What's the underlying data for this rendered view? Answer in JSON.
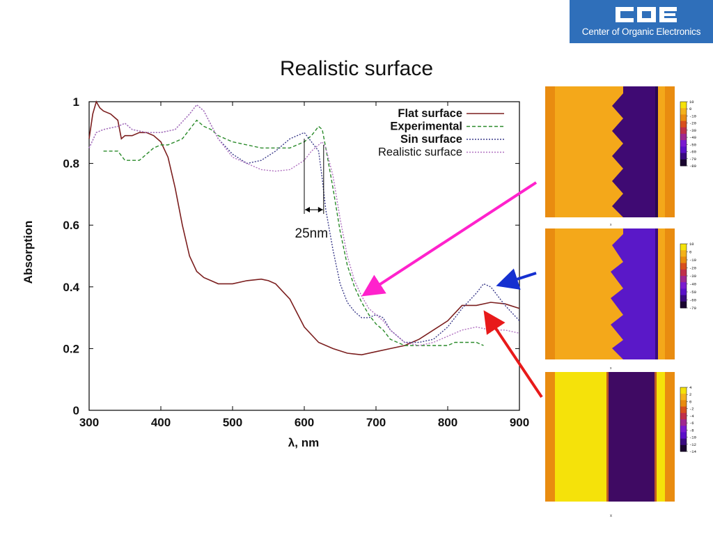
{
  "logo": {
    "mark_letters": "COE",
    "text": "Center of Organic Electronics",
    "bg_color": "#2f6fba"
  },
  "slide_title": "Realistic surface",
  "chart_data": {
    "type": "line",
    "title": "",
    "xlabel": "λ, nm",
    "ylabel": "Absorption",
    "xlim": [
      300,
      900
    ],
    "ylim": [
      0,
      1
    ],
    "xticks": [
      "300",
      "400",
      "500",
      "600",
      "700",
      "800",
      "900"
    ],
    "yticks": [
      "0",
      "0.2",
      "0.4",
      "0.6",
      "0.8",
      "1"
    ],
    "ytick_values": [
      0,
      0.2,
      0.4,
      0.6,
      0.8,
      1
    ],
    "grid": false,
    "legend_position": "top-right",
    "series": [
      {
        "name": "Flat surface",
        "color": "#7b1e1e",
        "dash": "solid",
        "x": [
          300,
          305,
          310,
          315,
          320,
          330,
          340,
          345,
          350,
          360,
          370,
          380,
          390,
          400,
          410,
          420,
          430,
          440,
          450,
          460,
          470,
          480,
          500,
          520,
          540,
          550,
          560,
          580,
          600,
          620,
          640,
          660,
          680,
          700,
          720,
          740,
          760,
          780,
          800,
          820,
          840,
          860,
          880,
          900
        ],
        "y": [
          0.88,
          0.96,
          1.0,
          0.98,
          0.97,
          0.96,
          0.94,
          0.88,
          0.89,
          0.89,
          0.9,
          0.9,
          0.89,
          0.87,
          0.82,
          0.72,
          0.6,
          0.5,
          0.45,
          0.43,
          0.42,
          0.41,
          0.41,
          0.42,
          0.425,
          0.42,
          0.41,
          0.36,
          0.27,
          0.22,
          0.2,
          0.185,
          0.18,
          0.19,
          0.2,
          0.21,
          0.23,
          0.26,
          0.29,
          0.34,
          0.34,
          0.35,
          0.345,
          0.33
        ]
      },
      {
        "name": "Experimental",
        "color": "#2a8a2a",
        "dash": "dashed",
        "x": [
          320,
          330,
          340,
          350,
          360,
          370,
          380,
          390,
          400,
          410,
          420,
          430,
          440,
          450,
          460,
          470,
          480,
          500,
          520,
          540,
          560,
          580,
          600,
          610,
          620,
          625,
          630,
          640,
          650,
          660,
          670,
          680,
          690,
          700,
          710,
          720,
          730,
          740,
          760,
          780,
          800,
          810,
          820,
          840,
          850
        ],
        "y": [
          0.84,
          0.84,
          0.84,
          0.81,
          0.81,
          0.81,
          0.83,
          0.85,
          0.86,
          0.86,
          0.87,
          0.88,
          0.91,
          0.94,
          0.92,
          0.91,
          0.89,
          0.87,
          0.86,
          0.85,
          0.85,
          0.85,
          0.87,
          0.89,
          0.92,
          0.91,
          0.85,
          0.72,
          0.58,
          0.47,
          0.4,
          0.35,
          0.31,
          0.28,
          0.26,
          0.23,
          0.22,
          0.21,
          0.21,
          0.21,
          0.21,
          0.22,
          0.22,
          0.22,
          0.21
        ]
      },
      {
        "name": "Sin surface",
        "color": "#3a3a8a",
        "dash": "dotted",
        "x": [
          300,
          310,
          320,
          340,
          350,
          360,
          380,
          400,
          420,
          440,
          450,
          460,
          480,
          500,
          520,
          540,
          560,
          580,
          600,
          620,
          625,
          630,
          640,
          650,
          660,
          670,
          680,
          690,
          700,
          710,
          720,
          740,
          760,
          780,
          800,
          820,
          840,
          850,
          860,
          880,
          900
        ],
        "y": [
          0.85,
          0.9,
          0.91,
          0.92,
          0.93,
          0.91,
          0.9,
          0.9,
          0.91,
          0.96,
          0.99,
          0.97,
          0.88,
          0.83,
          0.8,
          0.81,
          0.84,
          0.88,
          0.9,
          0.84,
          0.75,
          0.65,
          0.52,
          0.41,
          0.35,
          0.32,
          0.3,
          0.3,
          0.31,
          0.3,
          0.26,
          0.22,
          0.22,
          0.23,
          0.27,
          0.33,
          0.38,
          0.41,
          0.4,
          0.34,
          0.29
        ]
      },
      {
        "name": "Realistic surface",
        "color": "#b070c0",
        "dash": "dotted",
        "x": [
          300,
          310,
          320,
          340,
          350,
          360,
          380,
          400,
          420,
          440,
          450,
          460,
          480,
          500,
          520,
          540,
          560,
          580,
          600,
          610,
          620,
          625,
          630,
          640,
          650,
          660,
          670,
          680,
          690,
          700,
          710,
          720,
          740,
          760,
          780,
          800,
          820,
          840,
          860,
          880,
          900
        ],
        "y": [
          0.85,
          0.9,
          0.91,
          0.92,
          0.93,
          0.91,
          0.9,
          0.9,
          0.91,
          0.96,
          0.99,
          0.97,
          0.88,
          0.82,
          0.8,
          0.78,
          0.775,
          0.78,
          0.81,
          0.84,
          0.86,
          0.87,
          0.85,
          0.76,
          0.62,
          0.5,
          0.42,
          0.37,
          0.33,
          0.31,
          0.29,
          0.26,
          0.22,
          0.21,
          0.22,
          0.24,
          0.26,
          0.27,
          0.26,
          0.26,
          0.25
        ]
      }
    ],
    "annotations": [
      {
        "text": "25nm",
        "x_from": 600,
        "x_to": 627,
        "y": 0.65,
        "label_x": 610,
        "label_y": 0.56
      }
    ]
  },
  "arrows": [
    {
      "color": "#ff22cc"
    },
    {
      "color": "#1530d0"
    },
    {
      "color": "#e81a1a"
    }
  ],
  "panels": [
    {
      "colorbar_ticks": [
        "10",
        "0",
        "-10",
        "-20",
        "-30",
        "-40",
        "-50",
        "-60",
        "-70",
        "-80"
      ]
    },
    {
      "colorbar_ticks": [
        "10",
        "0",
        "-10",
        "-20",
        "-30",
        "-40",
        "-50",
        "-60",
        "-70"
      ]
    },
    {
      "colorbar_ticks": [
        "4",
        "2",
        "0",
        "-2",
        "-4",
        "-6",
        "-8",
        "-10",
        "-12",
        "-14"
      ]
    }
  ]
}
